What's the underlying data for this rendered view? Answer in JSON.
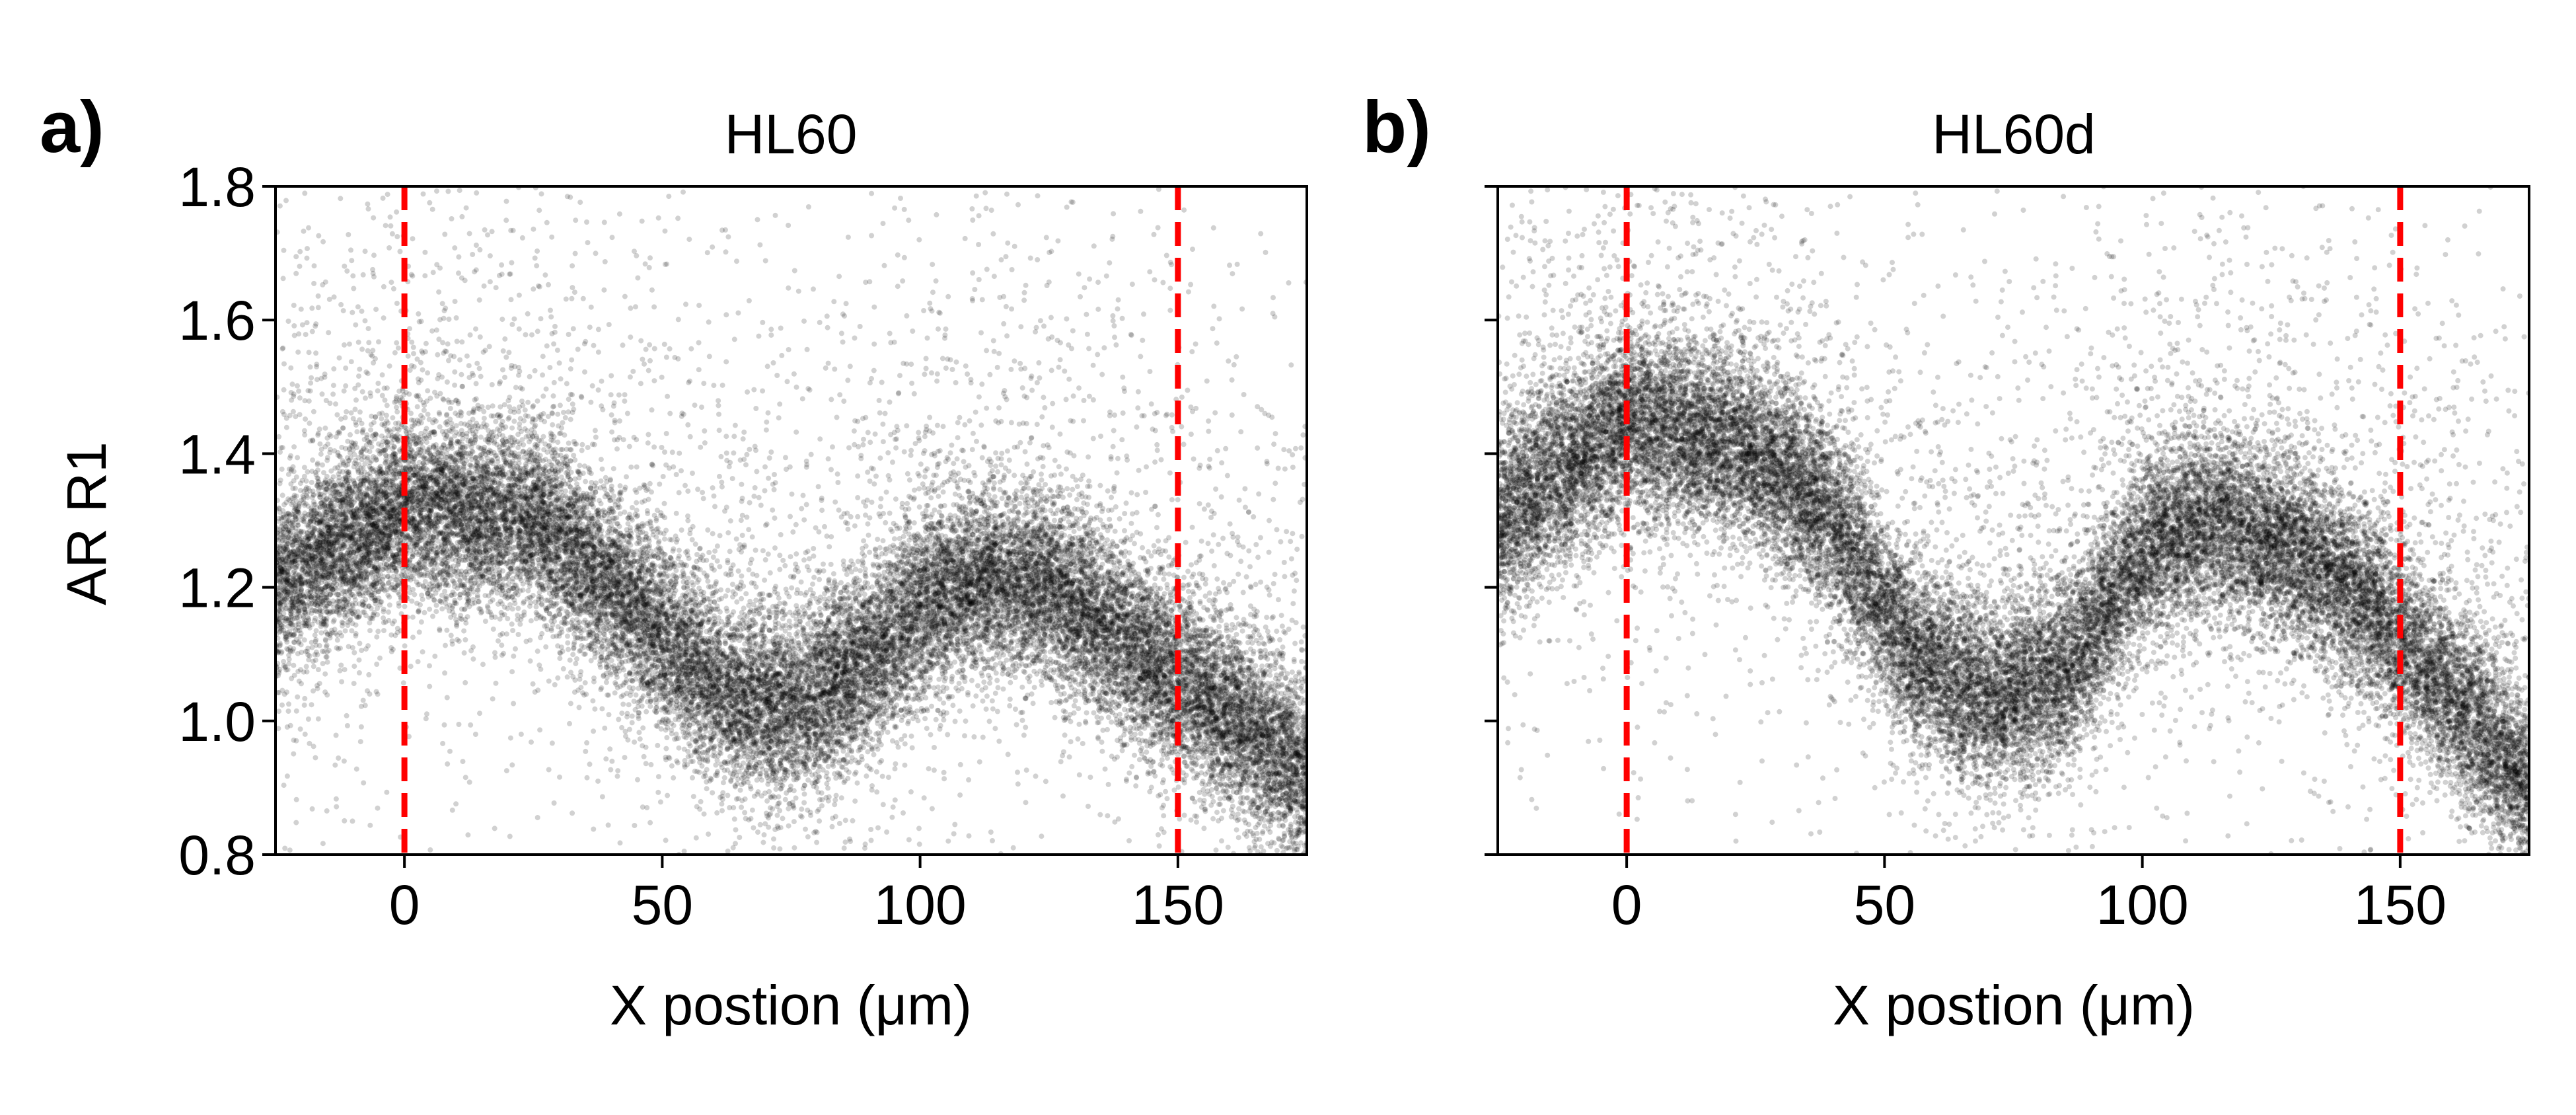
{
  "chart_data": [
    {
      "type": "scatter",
      "panel_label": "a)",
      "title": "HL60",
      "xlabel": "X postion (μm)",
      "ylabel": "AR R1",
      "xlim": [
        -25,
        175
      ],
      "ylim": [
        0.8,
        1.8
      ],
      "xticks": [
        0,
        50,
        100,
        150
      ],
      "yticks": [
        0.8,
        1.0,
        1.2,
        1.4,
        1.6,
        1.8
      ],
      "xtick_labels": [
        "0",
        "50",
        "100",
        "150"
      ],
      "ytick_labels": [
        "0.8",
        "1.0",
        "1.2",
        "1.4",
        "1.6",
        "1.8"
      ],
      "vlines": [
        0,
        150
      ],
      "vline_color": "#ff0000",
      "point_color": "#000000",
      "trend": {
        "x": [
          -25,
          0,
          25,
          50,
          62,
          75,
          90,
          100,
          112,
          125,
          150,
          162,
          175
        ],
        "y": [
          1.2,
          1.32,
          1.3,
          1.13,
          1.04,
          1.02,
          1.09,
          1.17,
          1.21,
          1.2,
          1.06,
          1.0,
          0.92
        ]
      },
      "spread": 0.07,
      "n_points": 30000
    },
    {
      "type": "scatter",
      "panel_label": "b)",
      "title": "HL60d",
      "xlabel": "X postion (μm)",
      "ylabel": "",
      "xlim": [
        -25,
        175
      ],
      "ylim": [
        0.8,
        1.8
      ],
      "xticks": [
        0,
        50,
        100,
        150
      ],
      "yticks": [
        0.8,
        1.0,
        1.2,
        1.4,
        1.6,
        1.8
      ],
      "xtick_labels": [
        "0",
        "50",
        "100",
        "150"
      ],
      "ytick_labels": [],
      "vlines": [
        0,
        150
      ],
      "vline_color": "#ff0000",
      "point_color": "#000000",
      "trend": {
        "x": [
          -25,
          0,
          25,
          40,
          55,
          70,
          85,
          100,
          112,
          125,
          140,
          150,
          165,
          175
        ],
        "y": [
          1.3,
          1.45,
          1.4,
          1.3,
          1.1,
          1.03,
          1.07,
          1.25,
          1.3,
          1.27,
          1.2,
          1.12,
          1.0,
          0.9
        ]
      },
      "spread": 0.07,
      "n_points": 30000
    }
  ]
}
